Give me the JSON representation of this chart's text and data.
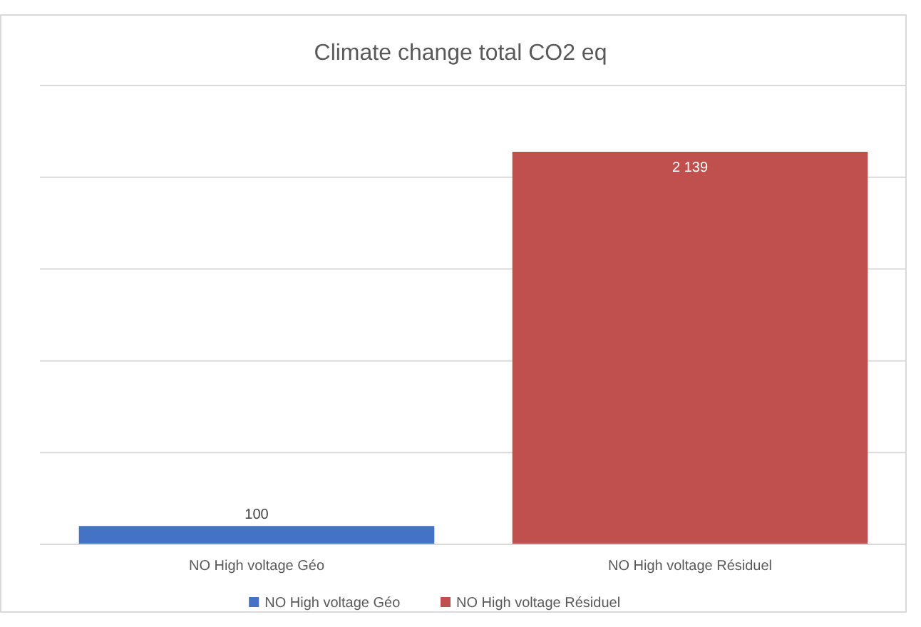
{
  "chart_data": {
    "type": "bar",
    "title": "Climate change total  CO2 eq",
    "categories": [
      "NO High voltage Géo",
      "NO High voltage Résiduel"
    ],
    "series": [
      {
        "name": "NO High voltage Géo",
        "color": "#4472c4",
        "values": [
          100,
          null
        ]
      },
      {
        "name": "NO High voltage Résiduel",
        "color": "#c0504d",
        "values": [
          null,
          2139
        ]
      }
    ],
    "data_labels": true,
    "ylim": [
      0,
      2500
    ],
    "yticks": [
      {
        "value": 0,
        "label": null
      },
      {
        "value": 500,
        "label": null
      },
      {
        "value": 1000,
        "label": null
      },
      {
        "value": 1500,
        "label": null
      },
      {
        "value": 2000,
        "label": null
      },
      {
        "value": 2500,
        "label": null
      }
    ],
    "grid": "y",
    "legend": "bottom"
  }
}
